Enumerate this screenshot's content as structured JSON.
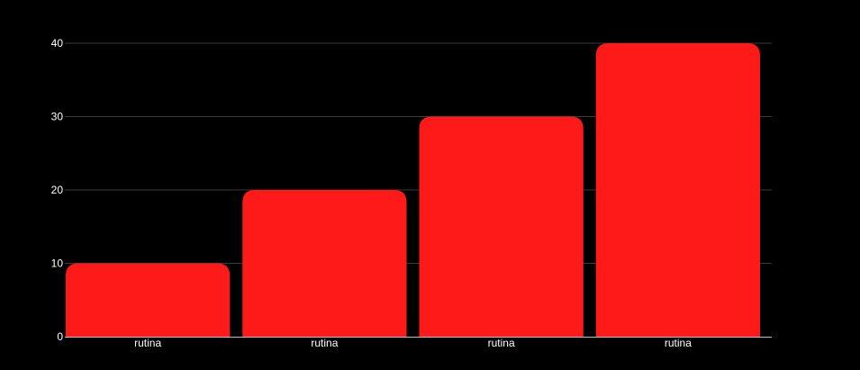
{
  "chart_data": {
    "type": "bar",
    "categories": [
      "rutina",
      "rutina",
      "rutina",
      "rutina"
    ],
    "values": [
      10,
      20,
      30,
      40
    ],
    "title": "",
    "xlabel": "",
    "ylabel": "",
    "ylim": [
      0,
      40
    ],
    "yticks": [
      0,
      10,
      20,
      30,
      40
    ],
    "grid": true,
    "legend": "none",
    "colors": {
      "background": "#000000",
      "bar": "#ff1a1a",
      "grid": "#3a3a3a",
      "text": "#ffffff"
    }
  }
}
